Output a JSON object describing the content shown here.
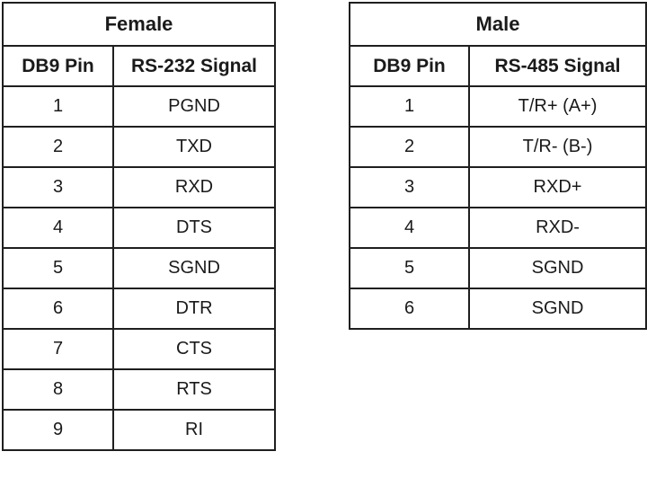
{
  "female": {
    "title": "Female",
    "headers": [
      "DB9 Pin",
      "RS-232 Signal"
    ],
    "rows": [
      [
        "1",
        "PGND"
      ],
      [
        "2",
        "TXD"
      ],
      [
        "3",
        "RXD"
      ],
      [
        "4",
        "DTS"
      ],
      [
        "5",
        "SGND"
      ],
      [
        "6",
        "DTR"
      ],
      [
        "7",
        "CTS"
      ],
      [
        "8",
        "RTS"
      ],
      [
        "9",
        "RI"
      ]
    ]
  },
  "male": {
    "title": "Male",
    "headers": [
      "DB9 Pin",
      "RS-485 Signal"
    ],
    "rows": [
      [
        "1",
        "T/R+ (A+)"
      ],
      [
        "2",
        "T/R- (B-)"
      ],
      [
        "3",
        "RXD+"
      ],
      [
        "4",
        "RXD-"
      ],
      [
        "5",
        "SGND"
      ],
      [
        "6",
        "SGND"
      ]
    ]
  }
}
